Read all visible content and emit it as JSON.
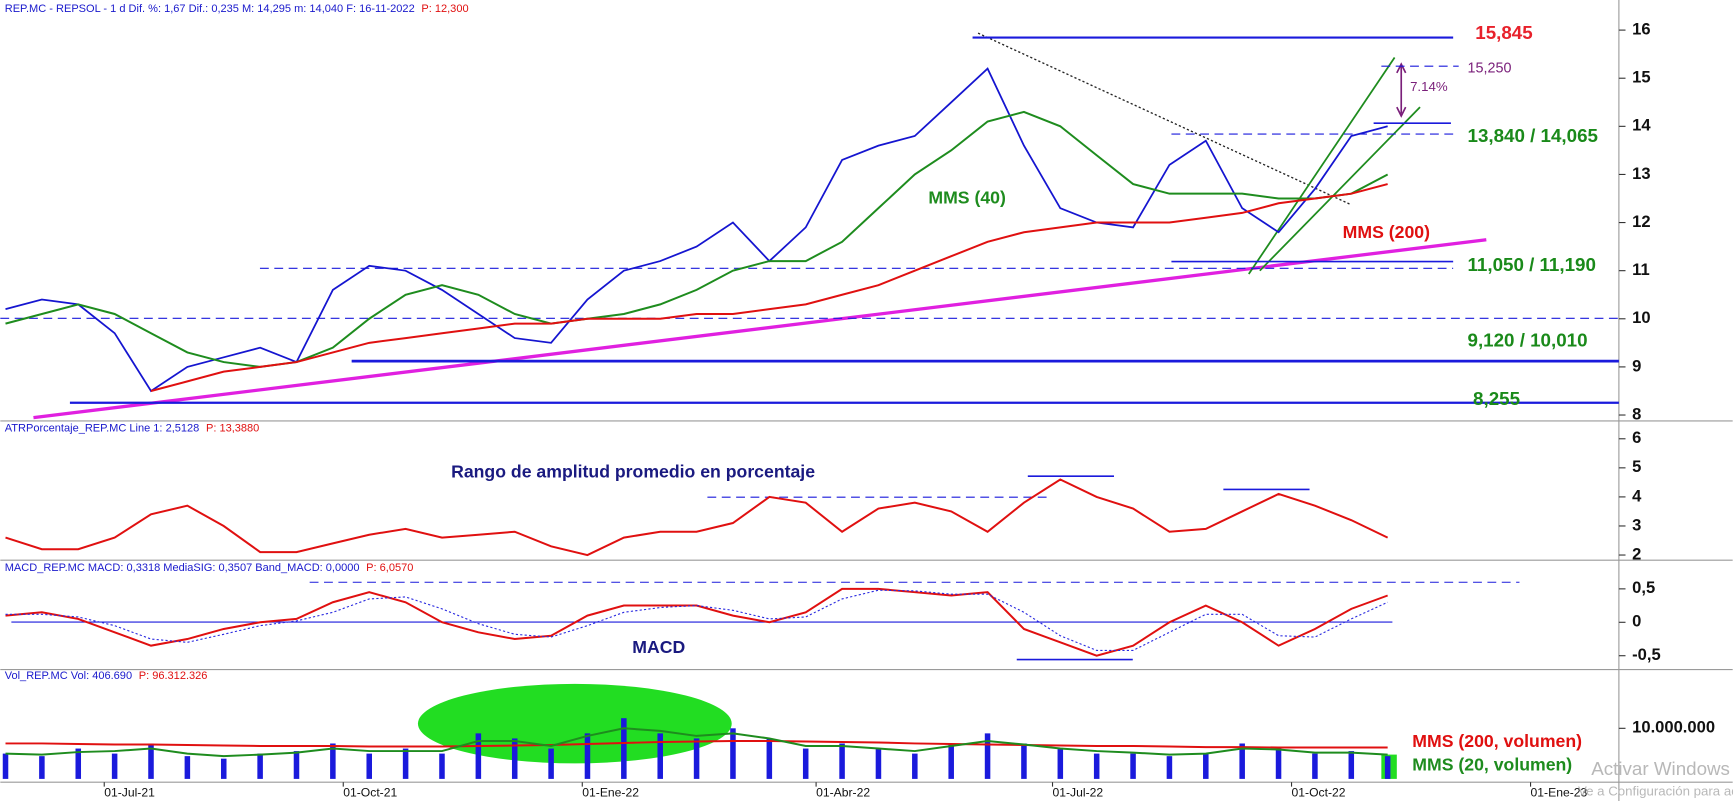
{
  "chart_data": [
    {
      "type": "line",
      "header": "REP.MC - REPSOL -  1 d  Dif. %: 1,67  Dif.: 0,235  M: 14,295  m: 14,040  F: 16-11-2022",
      "header_price": "P: 12,300",
      "x": [
        "2021-05-24",
        "2021-06-07",
        "2021-06-21",
        "2021-07-05",
        "2021-07-19",
        "2021-08-02",
        "2021-08-16",
        "2021-08-30",
        "2021-09-13",
        "2021-09-27",
        "2021-10-11",
        "2021-10-25",
        "2021-11-08",
        "2021-11-22",
        "2021-12-06",
        "2021-12-20",
        "2022-01-03",
        "2022-01-17",
        "2022-01-31",
        "2022-02-14",
        "2022-02-28",
        "2022-03-14",
        "2022-03-28",
        "2022-04-11",
        "2022-04-25",
        "2022-05-09",
        "2022-05-23",
        "2022-06-06",
        "2022-06-20",
        "2022-07-04",
        "2022-07-18",
        "2022-08-01",
        "2022-08-15",
        "2022-08-29",
        "2022-09-12",
        "2022-09-26",
        "2022-10-10",
        "2022-10-24",
        "2022-11-07"
      ],
      "xlim": [
        "2021-05-22",
        "2023-02-04"
      ],
      "ylim": [
        7.9,
        16.35
      ],
      "yticks": [
        8,
        9,
        10,
        11,
        12,
        13,
        14,
        15,
        16
      ],
      "series": [
        {
          "color": "#1515d0",
          "values": [
            10.2,
            10.4,
            10.3,
            9.7,
            8.5,
            9.0,
            9.2,
            9.4,
            9.1,
            10.6,
            11.1,
            11.0,
            10.6,
            10.1,
            9.6,
            9.5,
            10.4,
            11.0,
            11.2,
            11.5,
            12.0,
            11.2,
            11.9,
            13.3,
            13.6,
            13.8,
            14.5,
            15.2,
            13.6,
            12.3,
            12.0,
            11.9,
            13.2,
            13.7,
            12.3,
            11.8,
            12.7,
            13.8,
            14.0
          ]
        },
        {
          "name": "MMS (40)",
          "color": "#1e8c1e",
          "values": [
            9.9,
            10.1,
            10.3,
            10.1,
            9.7,
            9.3,
            9.1,
            9.0,
            9.1,
            9.4,
            10.0,
            10.5,
            10.7,
            10.5,
            10.1,
            9.9,
            10.0,
            10.1,
            10.3,
            10.6,
            11.0,
            11.2,
            11.2,
            11.6,
            12.3,
            13.0,
            13.5,
            14.1,
            14.3,
            14.0,
            13.4,
            12.8,
            12.6,
            12.6,
            12.6,
            12.5,
            12.5,
            12.6,
            13.0
          ]
        },
        {
          "name": "MMS (200)",
          "color": "#e01010",
          "values": [
            null,
            null,
            null,
            null,
            8.5,
            8.7,
            8.9,
            9.0,
            9.1,
            9.3,
            9.5,
            9.6,
            9.7,
            9.8,
            9.9,
            9.9,
            10.0,
            10.0,
            10.0,
            10.1,
            10.1,
            10.2,
            10.3,
            10.5,
            10.7,
            11.0,
            11.3,
            11.6,
            11.8,
            11.9,
            12.0,
            12.0,
            12.0,
            12.1,
            12.2,
            12.4,
            12.5,
            12.6,
            12.8
          ]
        }
      ],
      "levels": [
        {
          "values": [
            15.845
          ],
          "label": "15,845",
          "color": "#e8212b"
        },
        {
          "values": [
            15.25
          ],
          "label": "15,250",
          "color": "#7a1f7a"
        },
        {
          "values": [
            13.84,
            14.065
          ],
          "label": "13,840 / 14,065",
          "color": "#1a8a1a"
        },
        {
          "values": [
            11.05,
            11.19
          ],
          "label": "11,050 / 11,190",
          "color": "#1a8a1a"
        },
        {
          "values": [
            9.12,
            10.01
          ],
          "label": "9,120 / 10,010",
          "color": "#1a8a1a"
        },
        {
          "values": [
            8.255
          ],
          "label": "8,255",
          "color": "#1a8a1a"
        }
      ],
      "annotations": [
        {
          "text": "7.14%",
          "color": "#7a1f7a"
        }
      ]
    },
    {
      "type": "line",
      "header": "ATRPorcentaje_REP.MC  Line 1: 2,5128",
      "header_price": "P: 13,3880",
      "x": [
        "2021-05-24",
        "2021-06-07",
        "2021-06-21",
        "2021-07-05",
        "2021-07-19",
        "2021-08-02",
        "2021-08-16",
        "2021-08-30",
        "2021-09-13",
        "2021-09-27",
        "2021-10-11",
        "2021-10-25",
        "2021-11-08",
        "2021-11-22",
        "2021-12-06",
        "2021-12-20",
        "2022-01-03",
        "2022-01-17",
        "2022-01-31",
        "2022-02-14",
        "2022-02-28",
        "2022-03-14",
        "2022-03-28",
        "2022-04-11",
        "2022-04-25",
        "2022-05-09",
        "2022-05-23",
        "2022-06-06",
        "2022-06-20",
        "2022-07-04",
        "2022-07-18",
        "2022-08-01",
        "2022-08-15",
        "2022-08-29",
        "2022-09-12",
        "2022-09-26",
        "2022-10-10",
        "2022-10-24",
        "2022-11-07"
      ],
      "xlim": [
        "2021-05-22",
        "2023-02-04"
      ],
      "ylim": [
        1.9,
        6.5
      ],
      "yticks": [
        2,
        3,
        4,
        5,
        6
      ],
      "series": [
        {
          "color": "#e01010",
          "values": [
            2.6,
            2.2,
            2.2,
            2.6,
            3.4,
            3.7,
            3.0,
            2.1,
            2.1,
            2.4,
            2.7,
            2.9,
            2.6,
            2.7,
            2.8,
            2.3,
            2.0,
            2.6,
            2.8,
            2.8,
            3.1,
            4.0,
            3.8,
            2.8,
            3.6,
            3.8,
            3.5,
            2.8,
            3.8,
            4.6,
            4.0,
            3.6,
            2.8,
            2.9,
            3.5,
            4.1,
            3.7,
            3.2,
            2.6
          ]
        }
      ],
      "annotations": [
        {
          "text": "Rango de amplitud promedio en porcentaje",
          "color": "#1a1a80"
        }
      ]
    },
    {
      "type": "line",
      "header": "MACD_REP.MC  MACD: 0,3318  MediaSIG: 0,3507  Band_MACD: 0,0000",
      "header_price": "P: 6,0570",
      "x": [
        "2021-05-24",
        "2021-06-07",
        "2021-06-21",
        "2021-07-05",
        "2021-07-19",
        "2021-08-02",
        "2021-08-16",
        "2021-08-30",
        "2021-09-13",
        "2021-09-27",
        "2021-10-11",
        "2021-10-25",
        "2021-11-08",
        "2021-11-22",
        "2021-12-06",
        "2021-12-20",
        "2022-01-03",
        "2022-01-17",
        "2022-01-31",
        "2022-02-14",
        "2022-02-28",
        "2022-03-14",
        "2022-03-28",
        "2022-04-11",
        "2022-04-25",
        "2022-05-09",
        "2022-05-23",
        "2022-06-06",
        "2022-06-20",
        "2022-07-04",
        "2022-07-18",
        "2022-08-01",
        "2022-08-15",
        "2022-08-29",
        "2022-09-12",
        "2022-09-26",
        "2022-10-10",
        "2022-10-24",
        "2022-11-07"
      ],
      "xlim": [
        "2021-05-22",
        "2023-02-04"
      ],
      "ylim": [
        -0.69,
        0.88
      ],
      "yticks": [
        {
          "value": -0.5,
          "label": "-0,5"
        },
        0,
        {
          "value": 0.5,
          "label": "0,5"
        }
      ],
      "series": [
        {
          "color": "#e01010",
          "values": [
            0.1,
            0.15,
            0.05,
            -0.15,
            -0.35,
            -0.25,
            -0.1,
            0,
            0.05,
            0.3,
            0.45,
            0.3,
            0,
            -0.15,
            -0.25,
            -0.2,
            0.1,
            0.25,
            0.25,
            0.25,
            0.1,
            0,
            0.15,
            0.5,
            0.5,
            0.45,
            0.4,
            0.45,
            -0.1,
            -0.3,
            -0.5,
            -0.35,
            0,
            0.25,
            0,
            -0.35,
            -0.1,
            0.2,
            0.4
          ]
        },
        {
          "color": "#2a2ae0",
          "dashed": true,
          "values": [
            0.12,
            0.12,
            0.08,
            -0.05,
            -0.25,
            -0.3,
            -0.18,
            -0.05,
            0.02,
            0.15,
            0.35,
            0.38,
            0.2,
            -0.02,
            -0.18,
            -0.22,
            -0.05,
            0.15,
            0.22,
            0.25,
            0.18,
            0.05,
            0.08,
            0.35,
            0.48,
            0.47,
            0.42,
            0.42,
            0.15,
            -0.2,
            -0.42,
            -0.42,
            -0.15,
            0.12,
            0.12,
            -0.2,
            -0.22,
            0.05,
            0.3
          ]
        }
      ],
      "annotations": [
        {
          "text": "MACD",
          "color": "#1a1a80"
        }
      ]
    },
    {
      "type": "bar",
      "header": "Vol_REP.MC  Vol: 406.690",
      "header_price": "P: 96.312.326",
      "x": [
        "2021-05-24",
        "2021-06-07",
        "2021-06-21",
        "2021-07-05",
        "2021-07-19",
        "2021-08-02",
        "2021-08-16",
        "2021-08-30",
        "2021-09-13",
        "2021-09-27",
        "2021-10-11",
        "2021-10-25",
        "2021-11-08",
        "2021-11-22",
        "2021-12-06",
        "2021-12-20",
        "2022-01-03",
        "2022-01-17",
        "2022-01-31",
        "2022-02-14",
        "2022-02-28",
        "2022-03-14",
        "2022-03-28",
        "2022-04-11",
        "2022-04-25",
        "2022-05-09",
        "2022-05-23",
        "2022-06-06",
        "2022-06-20",
        "2022-07-04",
        "2022-07-18",
        "2022-08-01",
        "2022-08-15",
        "2022-08-29",
        "2022-09-12",
        "2022-09-26",
        "2022-10-10",
        "2022-10-24",
        "2022-11-07"
      ],
      "xlim": [
        "2021-05-22",
        "2023-02-04"
      ],
      "xticks": [
        {
          "value": "2021-07-01",
          "label": "01-Jul-21"
        },
        {
          "value": "2021-10-01",
          "label": "01-Oct-21"
        },
        {
          "value": "2022-01-01",
          "label": "01-Ene-22"
        },
        {
          "value": "2022-04-01",
          "label": "01-Abr-22"
        },
        {
          "value": "2022-07-01",
          "label": "01-Jul-22"
        },
        {
          "value": "2022-10-01",
          "label": "01-Oct-22"
        },
        {
          "value": "2023-01-01",
          "label": "01-Ene-23"
        }
      ],
      "ylim": [
        0,
        19000000
      ],
      "yticks": [
        {
          "value": 10000000,
          "label": "10.000.000"
        }
      ],
      "series": [
        {
          "color": "#1a1adc",
          "values": [
            5000000,
            4500000,
            6000000,
            5000000,
            7000000,
            4500000,
            4000000,
            5000000,
            5500000,
            7000000,
            5000000,
            6000000,
            5000000,
            9000000,
            8000000,
            6000000,
            9000000,
            12000000,
            9000000,
            8000000,
            10000000,
            8000000,
            6000000,
            7000000,
            6000000,
            5000000,
            7000000,
            9000000,
            7000000,
            6000000,
            5000000,
            5000000,
            4500000,
            5000000,
            7000000,
            6000000,
            5000000,
            5500000,
            4500000
          ]
        },
        {
          "name": "MMS (200, volumen)",
          "color": "#e01010",
          "values": [
            7000000,
            7000000,
            6900000,
            6800000,
            6800000,
            6700000,
            6600000,
            6500000,
            6500000,
            6500000,
            6400000,
            6400000,
            6400000,
            6500000,
            6600000,
            6700000,
            6900000,
            7100000,
            7300000,
            7400000,
            7500000,
            7500000,
            7400000,
            7300000,
            7200000,
            7000000,
            6900000,
            6800000,
            6700000,
            6600000,
            6500000,
            6500000,
            6400000,
            6300000,
            6300000,
            6200000,
            6200000,
            6200000,
            6200000
          ]
        },
        {
          "name": "MMS (20, volumen)",
          "color": "#1e8c1e",
          "values": [
            5000000,
            4800000,
            5300000,
            5500000,
            6000000,
            5000000,
            4500000,
            4800000,
            5200000,
            6000000,
            5500000,
            5500000,
            5500000,
            7500000,
            7500000,
            6500000,
            8500000,
            10000000,
            9500000,
            8500000,
            9000000,
            8000000,
            6500000,
            6500000,
            6000000,
            5500000,
            6500000,
            7500000,
            6800000,
            6000000,
            5500000,
            5200000,
            4800000,
            5000000,
            6000000,
            5800000,
            5200000,
            5200000,
            4800000
          ]
        }
      ]
    },
    {
      "type": "watermark",
      "lines": [
        "Activar Windows",
        "Ve a Configuración para activar Windows."
      ]
    }
  ]
}
